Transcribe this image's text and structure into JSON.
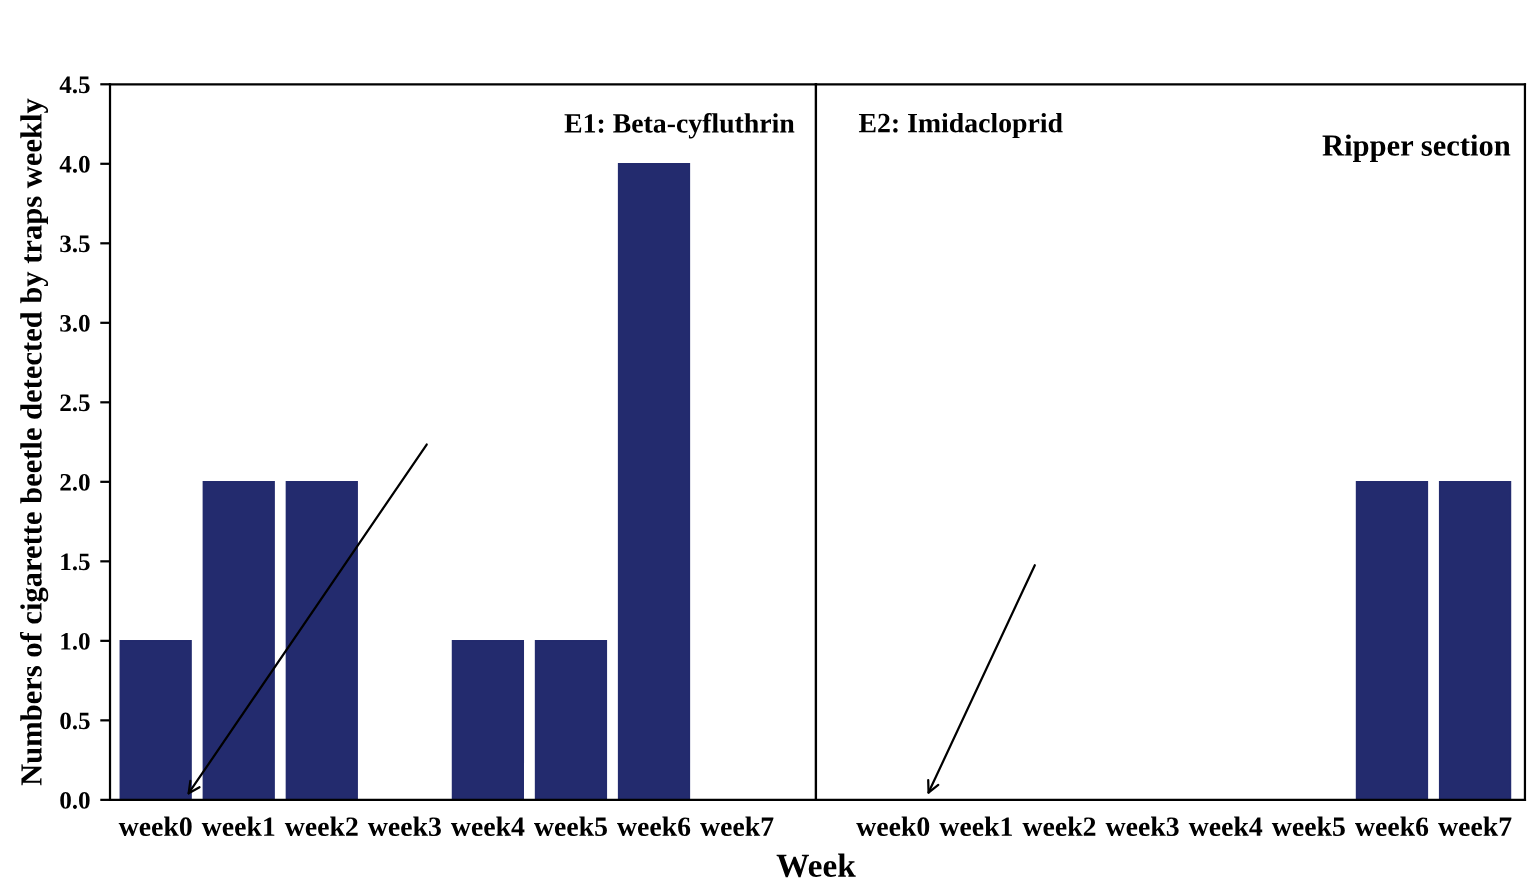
{
  "chart_data": [
    {
      "type": "bar",
      "ylabel": "Numbers of cigarette beetle detected by traps weekly",
      "xlabel": "Week",
      "annotations": [
        "E1: Beta-cyfluthrin"
      ],
      "categories": [
        "week0",
        "week1",
        "week2",
        "week3",
        "week4",
        "week5",
        "week6",
        "week7"
      ],
      "values": [
        1,
        2,
        2,
        0,
        1,
        1,
        4,
        0
      ],
      "color": "#232b6e",
      "ylim": [
        0,
        4.5
      ],
      "yticks": [
        {
          "value": 0,
          "label": "0.0"
        },
        {
          "value": 0.5,
          "label": "0.5"
        },
        {
          "value": 1,
          "label": "1.0"
        },
        {
          "value": 1.5,
          "label": "1.5"
        },
        {
          "value": 2,
          "label": "2.0"
        },
        {
          "value": 2.5,
          "label": "2.5"
        },
        {
          "value": 3,
          "label": "3.0"
        },
        {
          "value": 3.5,
          "label": "3.5"
        },
        {
          "value": 4,
          "label": "4.0"
        },
        {
          "value": 4.5,
          "label": "4.5"
        }
      ],
      "grid": false,
      "legend": false
    },
    {
      "type": "bar",
      "annotations": [
        "E2: Imidacloprid",
        "Ripper section"
      ],
      "categories": [
        "week0",
        "week1",
        "week2",
        "week3",
        "week4",
        "week5",
        "week6",
        "week7"
      ],
      "values": [
        0,
        0,
        0,
        0,
        0,
        0,
        2,
        2
      ],
      "color": "#232b6e",
      "ylim": [
        0,
        4.5
      ],
      "tick_labels": "x",
      "grid": false,
      "legend": false
    }
  ]
}
